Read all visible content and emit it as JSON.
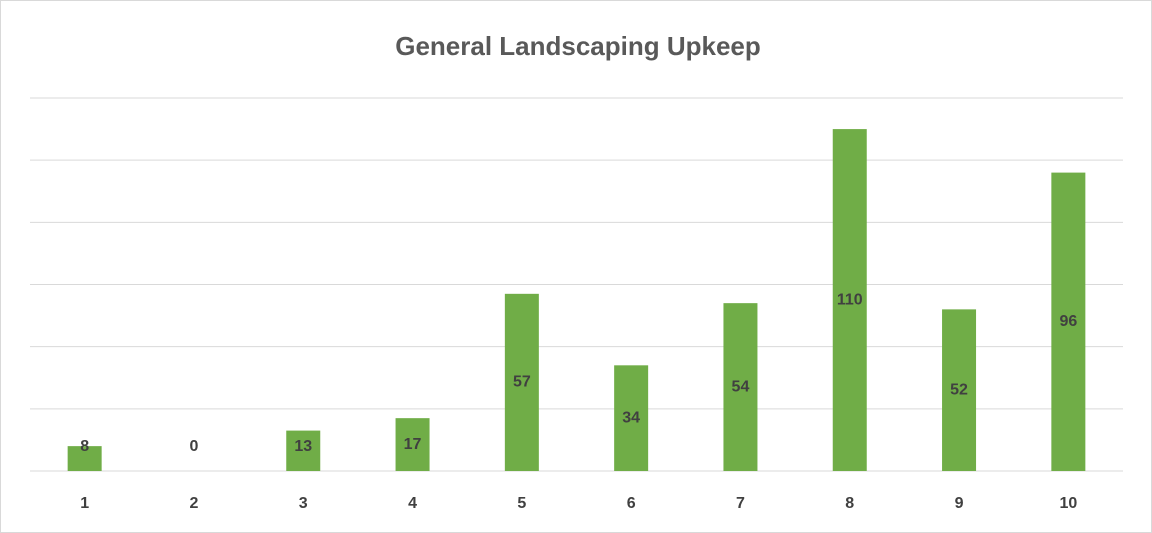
{
  "chart_data": {
    "type": "bar",
    "title": "General Landscaping Upkeep",
    "categories": [
      "1",
      "2",
      "3",
      "4",
      "5",
      "6",
      "7",
      "8",
      "9",
      "10"
    ],
    "values": [
      8,
      0,
      13,
      17,
      57,
      34,
      54,
      110,
      52,
      96
    ],
    "color": "#70ad47",
    "ylim": [
      0,
      120
    ],
    "yticks": [
      0,
      20,
      40,
      60,
      80,
      100,
      120
    ],
    "grid": true
  }
}
